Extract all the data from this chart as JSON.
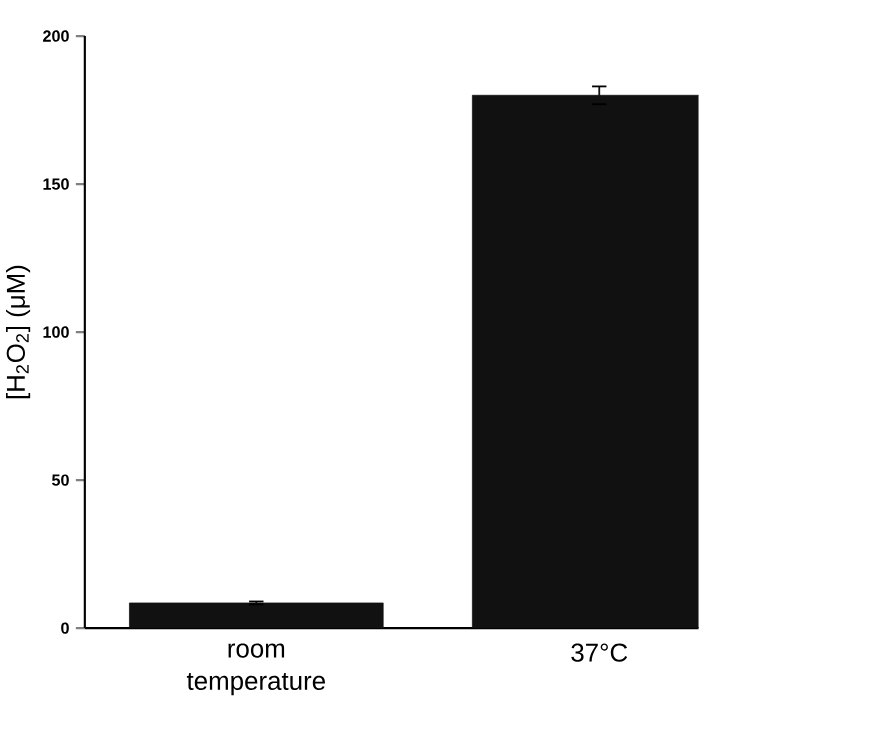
{
  "chart_data": {
    "type": "bar",
    "ylabel": "[H$_{2}$O$_{2}$]  (μM)",
    "categories": [
      "room temperature",
      "37°C"
    ],
    "values": [
      8.5,
      180
    ],
    "errors": [
      0.5,
      3
    ],
    "color": "#111111",
    "ylim": [
      0,
      200
    ],
    "yticks": [
      0,
      50,
      100,
      150,
      200
    ],
    "grid": false
  }
}
